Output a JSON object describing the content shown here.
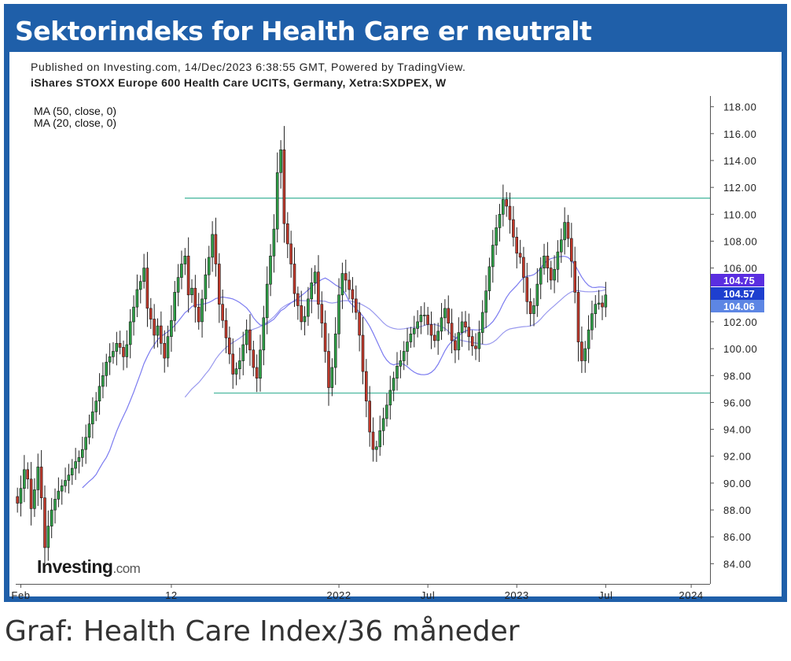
{
  "header": {
    "title": "Sektorindeks for Health Care er neutralt"
  },
  "chart_header": {
    "published": "Published on Investing.com, 14/Dec/2023 6:38:55 GMT, Powered by TradingView.",
    "instrument": "iShares STOXX Europe 600 Health Care UCITS, Germany, Xetra:SXDPEX, W"
  },
  "watermark": {
    "brand": "Investing",
    "suffix": ".com"
  },
  "caption": "Graf: Health Care Index/36 måneder",
  "chart_data": {
    "type": "candlestick",
    "title": "iShares STOXX Europe 600 Health Care UCITS, Germany, Xetra:SXDPEX, W",
    "interval": "weekly",
    "ylim": [
      82.5,
      118.8
    ],
    "y_ticks": [
      "84.00",
      "86.00",
      "88.00",
      "90.00",
      "92.00",
      "94.00",
      "96.00",
      "98.00",
      "100.00",
      "102.00",
      "104.00",
      "106.00",
      "108.00",
      "110.00",
      "112.00",
      "114.00",
      "116.00",
      "118.00"
    ],
    "x_ticks": [
      {
        "label": "Feb",
        "week": 1
      },
      {
        "label": "12",
        "week": 45
      },
      {
        "label": "2022",
        "week": 94
      },
      {
        "label": "Jul",
        "week": 120
      },
      {
        "label": "2023",
        "week": 146
      },
      {
        "label": "Jul",
        "week": 172
      },
      {
        "label": "2024",
        "week": 197
      }
    ],
    "total_weeks": 203,
    "indicators": [
      {
        "name": "MA (50, close, 0)",
        "last": 104.57,
        "color": "#9999ee"
      },
      {
        "name": "MA (20, close, 0)",
        "last": 104.75,
        "color": "#7b7bf0"
      }
    ],
    "price_labels": [
      {
        "value": "104.75",
        "color": "#5a2ee0"
      },
      {
        "value": "104.57",
        "color": "#1e3fcf"
      },
      {
        "value": "104.06",
        "color": "#5d86e4"
      }
    ],
    "horizontal_lines": [
      111.2,
      96.7
    ],
    "colors": {
      "up": "#2f9f47",
      "down": "#c0392b",
      "wick": "#222222",
      "line": "#4db8a0"
    },
    "closes": [
      88.5,
      89.6,
      91.0,
      90.3,
      88.1,
      89.5,
      91.2,
      88.9,
      85.2,
      86.8,
      88.0,
      88.8,
      89.4,
      89.8,
      90.2,
      90.6,
      91.1,
      91.6,
      91.9,
      92.5,
      93.4,
      94.4,
      95.3,
      96.1,
      97.2,
      98.0,
      99.0,
      99.4,
      99.8,
      100.4,
      100.1,
      99.4,
      100.3,
      102.0,
      103.1,
      104.4,
      105.0,
      106.0,
      103.0,
      102.2,
      101.0,
      101.7,
      100.4,
      99.3,
      100.9,
      102.1,
      104.2,
      105.3,
      106.3,
      106.9,
      104.0,
      104.5,
      103.1,
      102.0,
      103.7,
      105.5,
      106.8,
      108.5,
      106.3,
      103.3,
      102.1,
      100.8,
      99.6,
      98.1,
      98.5,
      99.1,
      100.3,
      101.4,
      99.9,
      98.6,
      97.8,
      99.9,
      102.3,
      104.8,
      106.9,
      108.9,
      113.1,
      114.8,
      109.3,
      107.8,
      106.3,
      104.1,
      103.2,
      102.0,
      102.4,
      103.7,
      104.9,
      105.7,
      103.3,
      101.9,
      99.8,
      97.1,
      98.6,
      101.1,
      104.0,
      105.6,
      105.1,
      104.4,
      103.7,
      102.7,
      101.0,
      98.3,
      96.1,
      93.8,
      92.5,
      92.7,
      93.9,
      94.8,
      95.8,
      96.9,
      97.8,
      98.7,
      99.1,
      99.8,
      100.5,
      101.1,
      101.5,
      102.0,
      102.5,
      102.5,
      101.8,
      101.0,
      100.6,
      101.3,
      102.3,
      103.0,
      101.9,
      100.6,
      99.9,
      101.2,
      102.0,
      101.6,
      100.9,
      100.2,
      100.0,
      101.2,
      102.7,
      104.3,
      106.1,
      107.7,
      109.0,
      110.0,
      111.1,
      110.6,
      109.6,
      108.3,
      107.1,
      106.8,
      105.3,
      103.5,
      102.6,
      103.2,
      104.8,
      106.0,
      106.9,
      106.0,
      105.1,
      105.9,
      107.2,
      108.1,
      109.4,
      108.2,
      106.5,
      104.2,
      100.5,
      99.1,
      100.0,
      101.4,
      102.6,
      103.3,
      103.4,
      103.1,
      104.0
    ]
  }
}
